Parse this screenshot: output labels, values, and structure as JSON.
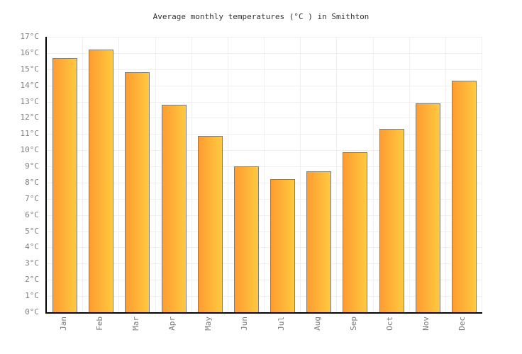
{
  "title": "Average monthly temperatures (°C ) in Smithton",
  "chart_data": {
    "type": "bar",
    "title": "Average monthly temperatures (°C ) in Smithton",
    "categories": [
      "Jan",
      "Feb",
      "Mar",
      "Apr",
      "May",
      "Jun",
      "Jul",
      "Aug",
      "Sep",
      "Oct",
      "Nov",
      "Dec"
    ],
    "values": [
      15.7,
      16.2,
      14.8,
      12.8,
      10.9,
      9.0,
      8.2,
      8.7,
      9.9,
      11.3,
      12.9,
      14.3
    ],
    "series_name": "Average monthly temperature (°C)",
    "xlabel": "",
    "ylabel": "",
    "ylim": [
      0,
      17
    ],
    "ytick_step": 1,
    "ytick_labels": [
      "0°C",
      "1°C",
      "2°C",
      "3°C",
      "4°C",
      "5°C",
      "6°C",
      "7°C",
      "8°C",
      "9°C",
      "10°C",
      "11°C",
      "12°C",
      "13°C",
      "14°C",
      "15°C",
      "16°C",
      "17°C"
    ],
    "grid": "horizontal and vertical gridlines",
    "legend_position": "none",
    "colors": {
      "bar_gradient_left": "#fe9c32",
      "bar_gradient_right": "#ffc93e",
      "bar_border": "#7d7d7d",
      "grid_color": "#efefef",
      "axis_color": "#000000",
      "tick_label_color": "#808080",
      "title_color": "#333333",
      "background": "#ffffff"
    }
  }
}
